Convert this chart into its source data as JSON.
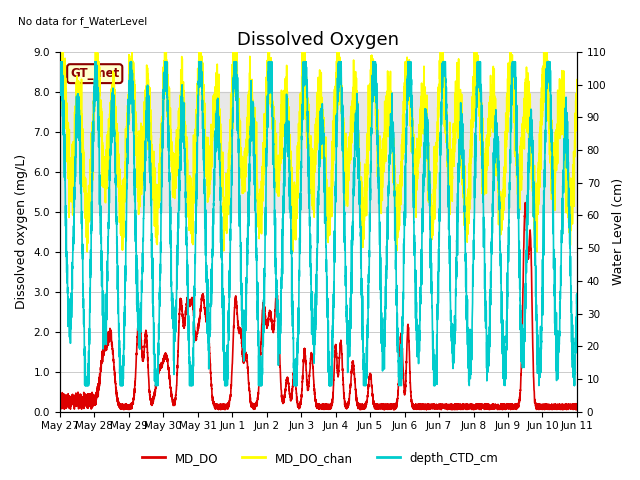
{
  "title": "Dissolved Oxygen",
  "xlabel": "",
  "ylabel_left": "Dissolved oxygen (mg/L)",
  "ylabel_right": "Water Level (cm)",
  "ylim_left": [
    0.0,
    9.0
  ],
  "ylim_right": [
    0,
    110
  ],
  "yticks_left": [
    0.0,
    1.0,
    2.0,
    3.0,
    4.0,
    5.0,
    6.0,
    7.0,
    8.0,
    9.0
  ],
  "yticks_right": [
    0,
    10,
    20,
    30,
    40,
    50,
    60,
    70,
    80,
    90,
    100,
    110
  ],
  "shade_band": [
    5.0,
    8.0
  ],
  "no_data_text": "No data for f_WaterLevel",
  "annotation_text": "GT_met",
  "color_MD_DO": "#dd0000",
  "color_MD_DO_chan": "#ffff00",
  "color_depth_CTD_cm": "#00cccc",
  "linewidth_MD_DO": 1.2,
  "linewidth_MD_DO_chan": 1.2,
  "linewidth_depth_CTD_cm": 1.2,
  "legend_labels": [
    "MD_DO",
    "MD_DO_chan",
    "depth_CTD_cm"
  ],
  "shade_color": "#cccccc",
  "shade_alpha": 0.45,
  "background_color": "#ffffff",
  "grid_color": "#cccccc",
  "title_fontsize": 13,
  "axis_label_fontsize": 9,
  "tick_fontsize": 7.5,
  "x_tick_labels": [
    "May 27",
    "May 28",
    "May 29",
    "May 30",
    "May 31",
    "Jun 1",
    "Jun 2",
    "Jun 3",
    "Jun 4",
    "Jun 5",
    "Jun 6",
    "Jun 7",
    "Jun 8",
    "Jun 9",
    "Jun 10",
    "Jun 11"
  ],
  "num_points": 5000
}
